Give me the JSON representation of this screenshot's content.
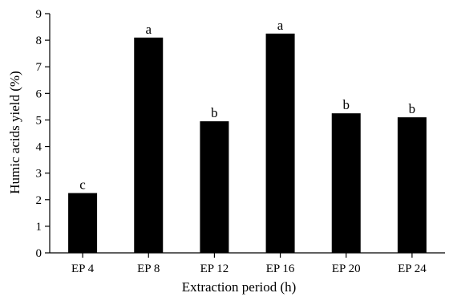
{
  "chart_data": {
    "type": "bar",
    "xlabel": "Extraction period (h)",
    "ylabel": "Humic acids yield (%)",
    "ylim": [
      0,
      9
    ],
    "yticks": [
      0,
      1,
      2,
      3,
      4,
      5,
      6,
      7,
      8,
      9
    ],
    "grid": false,
    "bar_color": "#000000",
    "categories": [
      "EP 4",
      "EP 8",
      "EP 12",
      "EP 16",
      "EP 20",
      "EP 24"
    ],
    "values": [
      2.25,
      8.1,
      4.95,
      8.25,
      5.25,
      5.1
    ],
    "annotations": [
      "c",
      "a",
      "b",
      "a",
      "b",
      "b"
    ]
  }
}
